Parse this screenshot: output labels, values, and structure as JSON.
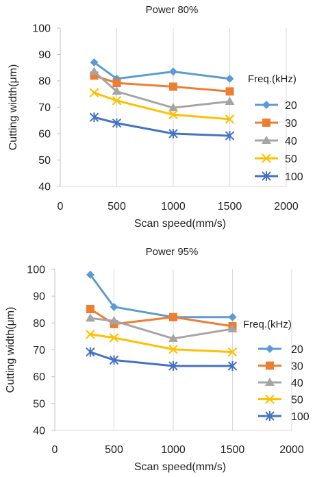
{
  "chart_data": [
    {
      "type": "line",
      "title": "Power 80%",
      "xlabel": "Scan speed(mm/s)",
      "ylabel": "Cutting width(μm)",
      "xlim": [
        0,
        2000
      ],
      "ylim": [
        40,
        100
      ],
      "xticks": [
        "0",
        "500",
        "1000",
        "1500",
        "2000"
      ],
      "yticks": [
        "40",
        "50",
        "60",
        "70",
        "80",
        "90",
        "100"
      ],
      "grid": "vertical",
      "legend_title": "Freq.(kHz)",
      "legend_position": "right",
      "x": [
        300,
        500,
        1000,
        1500
      ],
      "series": [
        {
          "name": "20",
          "values": [
            87,
            80.8,
            83.5,
            80.8
          ],
          "color": "#5B9BD5",
          "marker": "diamond"
        },
        {
          "name": "30",
          "values": [
            82,
            79.2,
            77.8,
            76
          ],
          "color": "#ED7D31",
          "marker": "square"
        },
        {
          "name": "40",
          "values": [
            83.5,
            76,
            69.8,
            72.2
          ],
          "color": "#A5A5A5",
          "marker": "triangle"
        },
        {
          "name": "50",
          "values": [
            75.5,
            72.5,
            67.2,
            65.5
          ],
          "color": "#FFC000",
          "marker": "x"
        },
        {
          "name": "100",
          "values": [
            66.2,
            64,
            60,
            59.2
          ],
          "color": "#4472C4",
          "marker": "star"
        }
      ]
    },
    {
      "type": "line",
      "title": "Power 95%",
      "xlabel": "Scan speed(mm/s)",
      "ylabel": "Cutting width(μm)",
      "xlim": [
        0,
        2000
      ],
      "ylim": [
        40,
        100
      ],
      "xticks": [
        "0",
        "500",
        "1000",
        "1500",
        "2000"
      ],
      "yticks": [
        "40",
        "50",
        "60",
        "70",
        "80",
        "90",
        "100"
      ],
      "grid": "vertical",
      "legend_title": "Freq.(kHz)",
      "legend_position": "right",
      "x": [
        300,
        500,
        1000,
        1500
      ],
      "series": [
        {
          "name": "20",
          "values": [
            98,
            86,
            82.2,
            82.2
          ],
          "color": "#5B9BD5",
          "marker": "diamond"
        },
        {
          "name": "30",
          "values": [
            85.2,
            79.6,
            82.2,
            78.8
          ],
          "color": "#ED7D31",
          "marker": "square"
        },
        {
          "name": "40",
          "values": [
            81.8,
            80.8,
            74.2,
            77.8
          ],
          "color": "#A5A5A5",
          "marker": "triangle"
        },
        {
          "name": "50",
          "values": [
            75.8,
            74.5,
            70.2,
            69.2
          ],
          "color": "#FFC000",
          "marker": "x"
        },
        {
          "name": "100",
          "values": [
            69.2,
            66.2,
            64,
            64
          ],
          "color": "#4472C4",
          "marker": "star"
        }
      ]
    }
  ]
}
